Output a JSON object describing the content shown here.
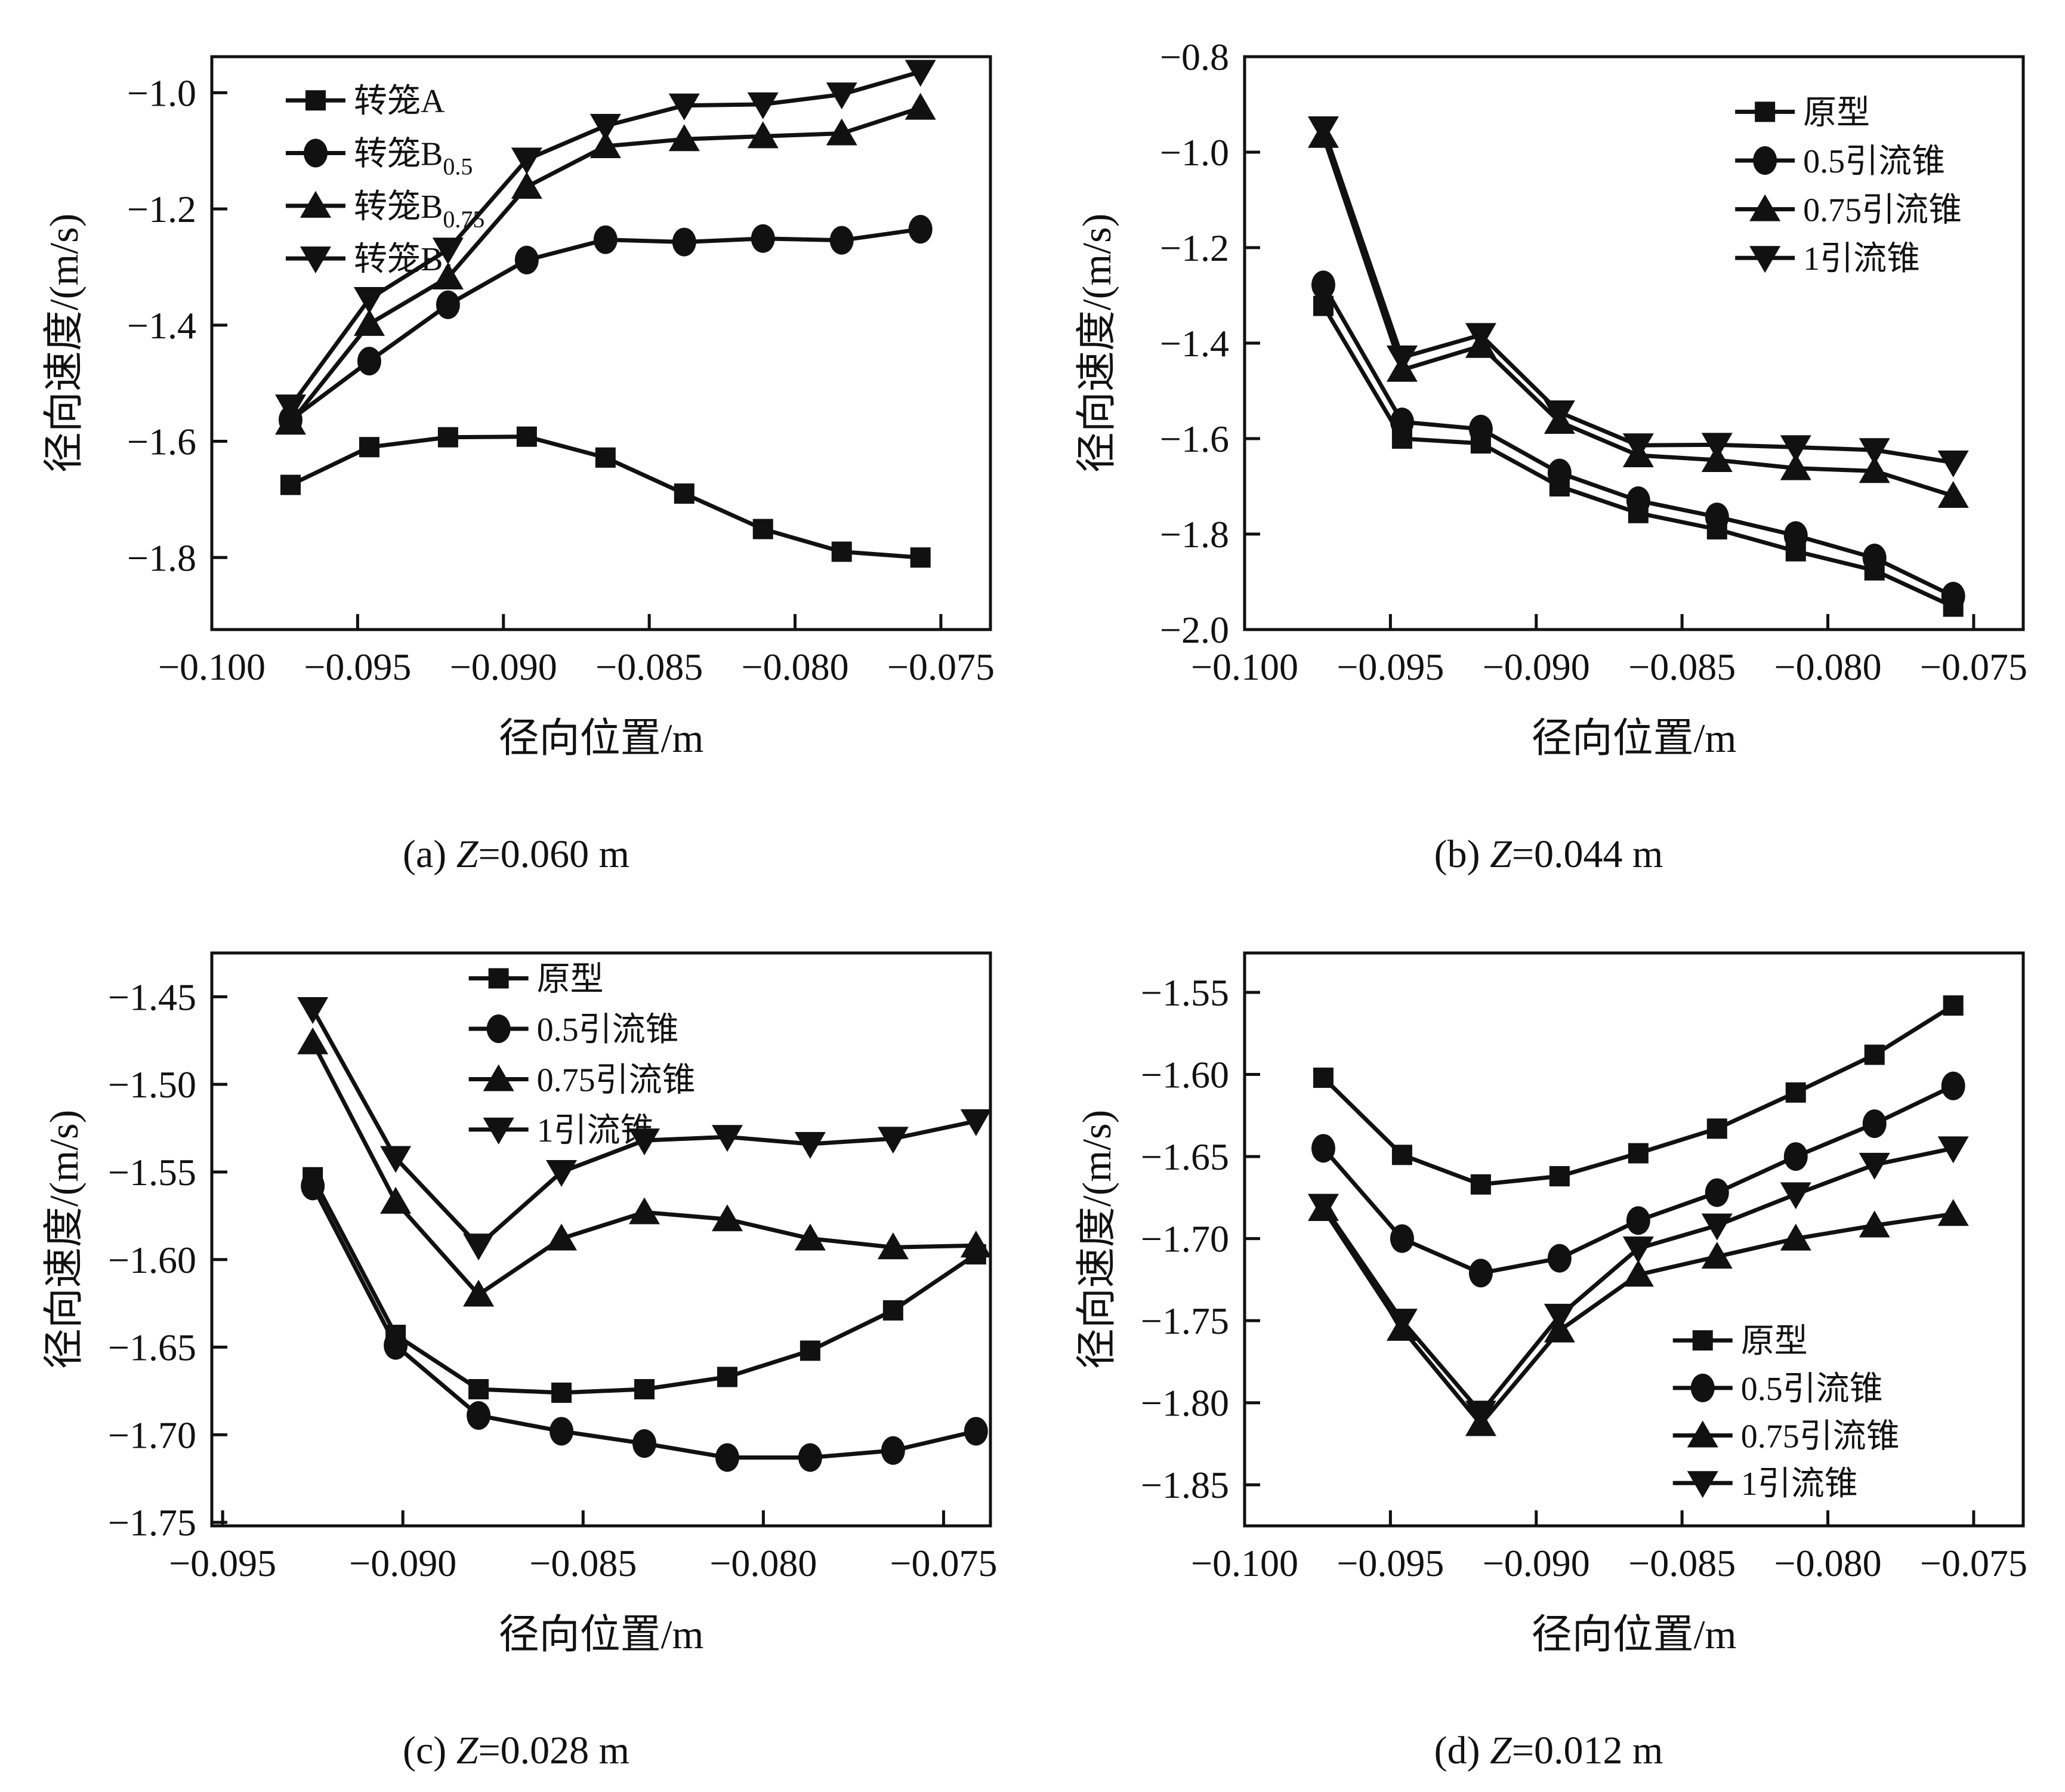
{
  "colors": {
    "ink": "#111111",
    "background": "#ffffff"
  },
  "chart_data": [
    {
      "id": "a",
      "type": "line",
      "caption": "(a) Z=0.060 m",
      "xlabel": "径向位置/m",
      "ylabel": "径向速度/(m/s)",
      "xlim": [
        -0.1,
        -0.0733
      ],
      "ylim": [
        -1.924,
        -0.938
      ],
      "grid": false,
      "legend_position": "top-left",
      "legend": {
        "x": 0.095,
        "y": 0.045,
        "row": 0.092
      },
      "xtick_values": [
        -0.1,
        -0.095,
        -0.09,
        -0.085,
        -0.08,
        -0.075
      ],
      "xtick_labels": [
        "−0.100",
        "−0.095",
        "−0.090",
        "−0.085",
        "−0.080",
        "−0.075"
      ],
      "ytick_values": [
        -1.0,
        -1.2,
        -1.4,
        -1.6,
        -1.8
      ],
      "ytick_labels": [
        "−1.0",
        "−1.2",
        "−1.4",
        "−1.6",
        "−1.8"
      ],
      "x": [
        -0.0973,
        -0.0946,
        -0.0919,
        -0.0892,
        -0.0865,
        -0.0838,
        -0.0811,
        -0.0784,
        -0.0757
      ],
      "series": [
        {
          "name": "转笼A",
          "sub": "",
          "marker": "square",
          "values": [
            -1.675,
            -1.61,
            -1.593,
            -1.592,
            -1.628,
            -1.69,
            -1.751,
            -1.79,
            -1.8
          ]
        },
        {
          "name": "转笼B",
          "sub": "0.5",
          "marker": "circle",
          "values": [
            -1.563,
            -1.462,
            -1.365,
            -1.288,
            -1.253,
            -1.257,
            -1.251,
            -1.254,
            -1.235
          ]
        },
        {
          "name": "转笼B",
          "sub": "0.75",
          "marker": "triangle-up",
          "values": [
            -1.568,
            -1.398,
            -1.318,
            -1.162,
            -1.092,
            -1.08,
            -1.075,
            -1.07,
            -1.026
          ]
        },
        {
          "name": "转笼B",
          "sub": "1",
          "marker": "triangle-down",
          "values": [
            -1.54,
            -1.355,
            -1.27,
            -1.115,
            -1.057,
            -1.022,
            -1.02,
            -1.003,
            -0.964
          ]
        }
      ]
    },
    {
      "id": "b",
      "type": "line",
      "caption": "(b) Z=0.044 m",
      "xlabel": "径向位置/m",
      "ylabel": "径向速度/(m/s)",
      "xlim": [
        -0.1,
        -0.0733
      ],
      "ylim": [
        -2.0,
        -0.8
      ],
      "grid": false,
      "legend_position": "top-right",
      "legend": {
        "x": 0.63,
        "y": 0.065,
        "row": 0.085
      },
      "xtick_values": [
        -0.1,
        -0.095,
        -0.09,
        -0.085,
        -0.08,
        -0.075
      ],
      "xtick_labels": [
        "−0.100",
        "−0.095",
        "−0.090",
        "−0.085",
        "−0.080",
        "−0.075"
      ],
      "ytick_values": [
        -0.8,
        -1.0,
        -1.2,
        -1.4,
        -1.6,
        -1.8,
        -2.0
      ],
      "ytick_labels": [
        "−0.8",
        "−1.0",
        "−1.2",
        "−1.4",
        "−1.6",
        "−1.8",
        "−2.0"
      ],
      "x": [
        -0.0973,
        -0.0946,
        -0.0919,
        -0.0892,
        -0.0865,
        -0.0838,
        -0.0811,
        -0.0784,
        -0.0757
      ],
      "series": [
        {
          "name": "原型",
          "sub": "",
          "marker": "square",
          "values": [
            -1.322,
            -1.6,
            -1.61,
            -1.7,
            -1.756,
            -1.79,
            -1.836,
            -1.876,
            -1.952
          ]
        },
        {
          "name": "0.5引流锥",
          "sub": "",
          "marker": "circle",
          "values": [
            -1.278,
            -1.565,
            -1.58,
            -1.672,
            -1.73,
            -1.764,
            -1.803,
            -1.85,
            -1.93
          ]
        },
        {
          "name": "0.75引流锥",
          "sub": "",
          "marker": "triangle-up",
          "values": [
            -0.966,
            -1.456,
            -1.406,
            -1.565,
            -1.635,
            -1.645,
            -1.662,
            -1.668,
            -1.72
          ]
        },
        {
          "name": "1引流锥",
          "sub": "",
          "marker": "triangle-down",
          "values": [
            -0.95,
            -1.43,
            -1.383,
            -1.545,
            -1.614,
            -1.613,
            -1.618,
            -1.624,
            -1.65
          ]
        }
      ]
    },
    {
      "id": "c",
      "type": "line",
      "caption": "(c) Z=0.028 m",
      "xlabel": "径向位置/m",
      "ylabel": "径向速度/(m/s)",
      "xlim": [
        -0.0953,
        -0.0737
      ],
      "ylim": [
        -1.752,
        -1.425
      ],
      "grid": false,
      "legend_position": "top-center",
      "legend": {
        "x": 0.33,
        "y": 0.013,
        "row": 0.088
      },
      "xtick_values": [
        -0.095,
        -0.09,
        -0.085,
        -0.08,
        -0.075
      ],
      "xtick_labels": [
        "−0.095",
        "−0.090",
        "−0.085",
        "−0.080",
        "−0.075"
      ],
      "ytick_values": [
        -1.45,
        -1.5,
        -1.55,
        -1.6,
        -1.65,
        -1.7,
        -1.75
      ],
      "ytick_labels": [
        "−1.45",
        "−1.50",
        "−1.55",
        "−1.60",
        "−1.65",
        "−1.70",
        "−1.75"
      ],
      "x": [
        -0.0925,
        -0.0902,
        -0.0879,
        -0.0856,
        -0.0833,
        -0.081,
        -0.0787,
        -0.0764,
        -0.0741
      ],
      "series": [
        {
          "name": "原型",
          "sub": "",
          "marker": "square",
          "values": [
            -1.553,
            -1.643,
            -1.674,
            -1.676,
            -1.674,
            -1.667,
            -1.652,
            -1.629,
            -1.597
          ]
        },
        {
          "name": "0.5引流锥",
          "sub": "",
          "marker": "circle",
          "values": [
            -1.558,
            -1.649,
            -1.689,
            -1.698,
            -1.705,
            -1.713,
            -1.713,
            -1.709,
            -1.698
          ]
        },
        {
          "name": "0.75引流锥",
          "sub": "",
          "marker": "triangle-up",
          "values": [
            -1.476,
            -1.567,
            -1.62,
            -1.588,
            -1.573,
            -1.577,
            -1.588,
            -1.593,
            -1.592
          ]
        },
        {
          "name": "1引流锥",
          "sub": "",
          "marker": "triangle-down",
          "values": [
            -1.457,
            -1.542,
            -1.592,
            -1.55,
            -1.532,
            -1.53,
            -1.534,
            -1.531,
            -1.521
          ]
        }
      ]
    },
    {
      "id": "d",
      "type": "line",
      "caption": "(d) Z=0.012 m",
      "xlabel": "径向位置/m",
      "ylabel": "径向速度/(m/s)",
      "xlim": [
        -0.1,
        -0.0733
      ],
      "ylim": [
        -1.875,
        -1.526
      ],
      "grid": false,
      "legend_position": "bottom-right",
      "legend": {
        "x": 0.55,
        "y": 0.645,
        "row": 0.083
      },
      "xtick_values": [
        -0.1,
        -0.095,
        -0.09,
        -0.085,
        -0.08,
        -0.075
      ],
      "xtick_labels": [
        "−0.100",
        "−0.095",
        "−0.090",
        "−0.085",
        "−0.080",
        "−0.075"
      ],
      "ytick_values": [
        -1.55,
        -1.6,
        -1.65,
        -1.7,
        -1.75,
        -1.8,
        -1.85
      ],
      "ytick_labels": [
        "−1.55",
        "−1.60",
        "−1.65",
        "−1.70",
        "−1.75",
        "−1.80",
        "−1.85"
      ],
      "x": [
        -0.0973,
        -0.0946,
        -0.0919,
        -0.0892,
        -0.0865,
        -0.0838,
        -0.0811,
        -0.0784,
        -0.0757
      ],
      "series": [
        {
          "name": "原型",
          "sub": "",
          "marker": "square",
          "values": [
            -1.602,
            -1.649,
            -1.667,
            -1.662,
            -1.648,
            -1.633,
            -1.611,
            -1.588,
            -1.558
          ]
        },
        {
          "name": "0.5引流锥",
          "sub": "",
          "marker": "circle",
          "values": [
            -1.645,
            -1.7,
            -1.721,
            -1.712,
            -1.689,
            -1.672,
            -1.65,
            -1.63,
            -1.607
          ]
        },
        {
          "name": "0.75引流锥",
          "sub": "",
          "marker": "triangle-up",
          "values": [
            -1.682,
            -1.755,
            -1.813,
            -1.756,
            -1.722,
            -1.711,
            -1.7,
            -1.692,
            -1.685
          ]
        },
        {
          "name": "1引流锥",
          "sub": "",
          "marker": "triangle-down",
          "values": [
            -1.68,
            -1.75,
            -1.806,
            -1.747,
            -1.706,
            -1.692,
            -1.673,
            -1.655,
            -1.645
          ]
        }
      ]
    }
  ]
}
